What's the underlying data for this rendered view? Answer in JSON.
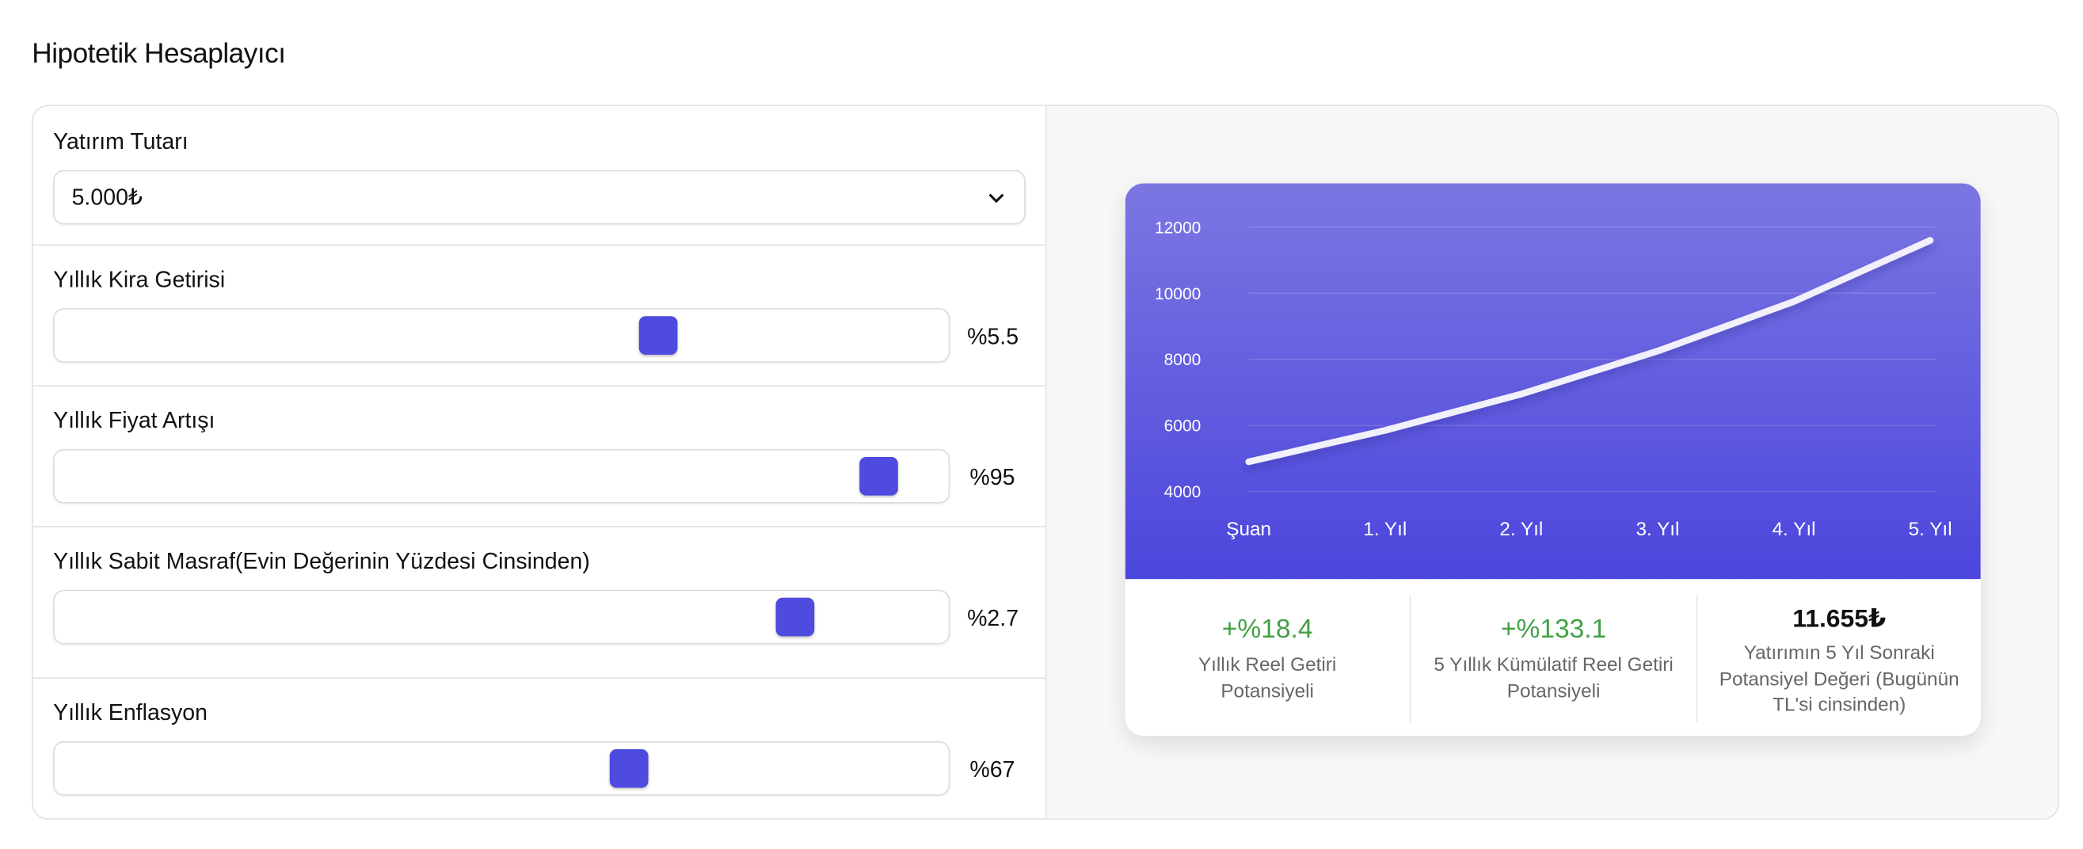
{
  "header": {
    "title": "Hipotetik Hesaplayıcı"
  },
  "inputs": [
    {
      "label": "Yatırım Tutarı",
      "value": "5.000₺"
    },
    {
      "label": "Yıllık Kira Getirisi",
      "value": "%5.5"
    },
    {
      "label": "Yıllık Fiyat Artışı",
      "value": "%95"
    },
    {
      "label": "Yıllık Sabit Masraf(Evin Değerinin Yüzdesi Cinsinden)",
      "value": "%2.7"
    },
    {
      "label": "Yıllık Enflasyon",
      "value": "%67"
    }
  ],
  "chart_data": {
    "type": "line",
    "categories": [
      "Şuan",
      "1. Yıl",
      "2. Yıl",
      "3. Yıl",
      "4. Yıl",
      "5. Yıl"
    ],
    "values": [
      4900,
      5850,
      6950,
      8250,
      9750,
      11600
    ],
    "color": "#f1f0fb",
    "ylim": [
      4000,
      12000
    ],
    "yticks": [
      4000,
      6000,
      8000,
      10000,
      12000
    ],
    "grid": true
  },
  "stats": [
    {
      "value": "+%18.4",
      "label": "Yıllık Reel Getiri Potansiyeli"
    },
    {
      "value": "+%133.1",
      "label": "5 Yıllık Kümülatif Reel Getiri Potansiyeli"
    },
    {
      "value": "11.655₺",
      "label": "Yatırımın 5 Yıl Sonraki Potansiyel Değeri (Bugünün TL'si cinsinden)"
    }
  ]
}
